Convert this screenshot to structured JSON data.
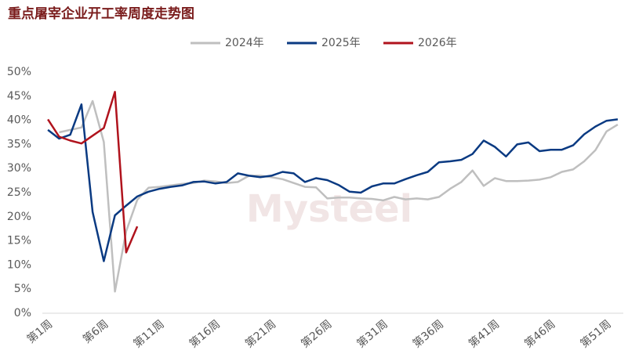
{
  "chart_data": {
    "type": "line",
    "title": "重点屠宰企业开工率周度走势图",
    "watermark": "Mysteel",
    "categories": [
      "第1周",
      null,
      null,
      null,
      null,
      "第6周",
      null,
      null,
      null,
      null,
      "第11周",
      null,
      null,
      null,
      null,
      "第16周",
      null,
      null,
      null,
      null,
      "第21周",
      null,
      null,
      null,
      null,
      "第26周",
      null,
      null,
      null,
      null,
      "第31周",
      null,
      null,
      null,
      null,
      "第36周",
      null,
      null,
      null,
      null,
      "第41周",
      null,
      null,
      null,
      null,
      "第46周",
      null,
      null,
      null,
      null,
      "第51周",
      null
    ],
    "series": [
      {
        "name": "2024年",
        "color": "#bfbfbf",
        "values": [
          null,
          37.5,
          38,
          38.5,
          44,
          35.5,
          4.5,
          17,
          23.5,
          26,
          26.2,
          26.5,
          26.8,
          27,
          27.5,
          27.3,
          27,
          27.2,
          28.5,
          28.5,
          28.2,
          27.8,
          27,
          26.2,
          26.1,
          23.8,
          24,
          24,
          23.8,
          23.7,
          23.4,
          24.1,
          23.6,
          23.8,
          23.6,
          24.1,
          25.8,
          27.2,
          29.6,
          26.4,
          28,
          27.4,
          27.4,
          27.5,
          27.7,
          28.2,
          29.3,
          29.8,
          31.5,
          33.8,
          37.7,
          39.1
        ]
      },
      {
        "name": "2025年",
        "color": "#0a3a82",
        "values": [
          38,
          36.2,
          37,
          43.3,
          21,
          10.8,
          20.3,
          22.3,
          24.2,
          25.2,
          25.8,
          26.2,
          26.5,
          27.2,
          27.3,
          26.9,
          27.2,
          29,
          28.5,
          28.2,
          28.5,
          29.3,
          29,
          27.2,
          28,
          27.6,
          26.6,
          25.2,
          25,
          26.3,
          26.9,
          26.9,
          27.8,
          28.6,
          29.3,
          31.3,
          31.5,
          31.8,
          33,
          35.8,
          34.5,
          32.5,
          35,
          35.4,
          33.6,
          33.9,
          33.9,
          34.8,
          37.1,
          38.7,
          39.9,
          40.2
        ]
      },
      {
        "name": "2026年",
        "color": "#b0131d",
        "values": [
          40.2,
          36.6,
          35.8,
          35.2,
          36.8,
          38.4,
          45.9,
          12.6,
          18,
          null,
          null,
          null,
          null,
          null,
          null,
          null,
          null,
          null,
          null,
          null,
          null,
          null,
          null,
          null,
          null,
          null,
          null,
          null,
          null,
          null,
          null,
          null,
          null,
          null,
          null,
          null,
          null,
          null,
          null,
          null,
          null,
          null,
          null,
          null,
          null,
          null,
          null,
          null,
          null,
          null,
          null,
          null
        ]
      }
    ],
    "ylim": [
      0,
      50
    ],
    "yticks": [
      {
        "value": 0,
        "label": "0%"
      },
      {
        "value": 5,
        "label": "5%"
      },
      {
        "value": 10,
        "label": "10%"
      },
      {
        "value": 15,
        "label": "15%"
      },
      {
        "value": 20,
        "label": "20%"
      },
      {
        "value": 25,
        "label": "25%"
      },
      {
        "value": 30,
        "label": "30%"
      },
      {
        "value": 35,
        "label": "35%"
      },
      {
        "value": 40,
        "label": "40%"
      },
      {
        "value": 45,
        "label": "45%"
      },
      {
        "value": 50,
        "label": "50%"
      }
    ],
    "grid": false,
    "legend": "top"
  }
}
